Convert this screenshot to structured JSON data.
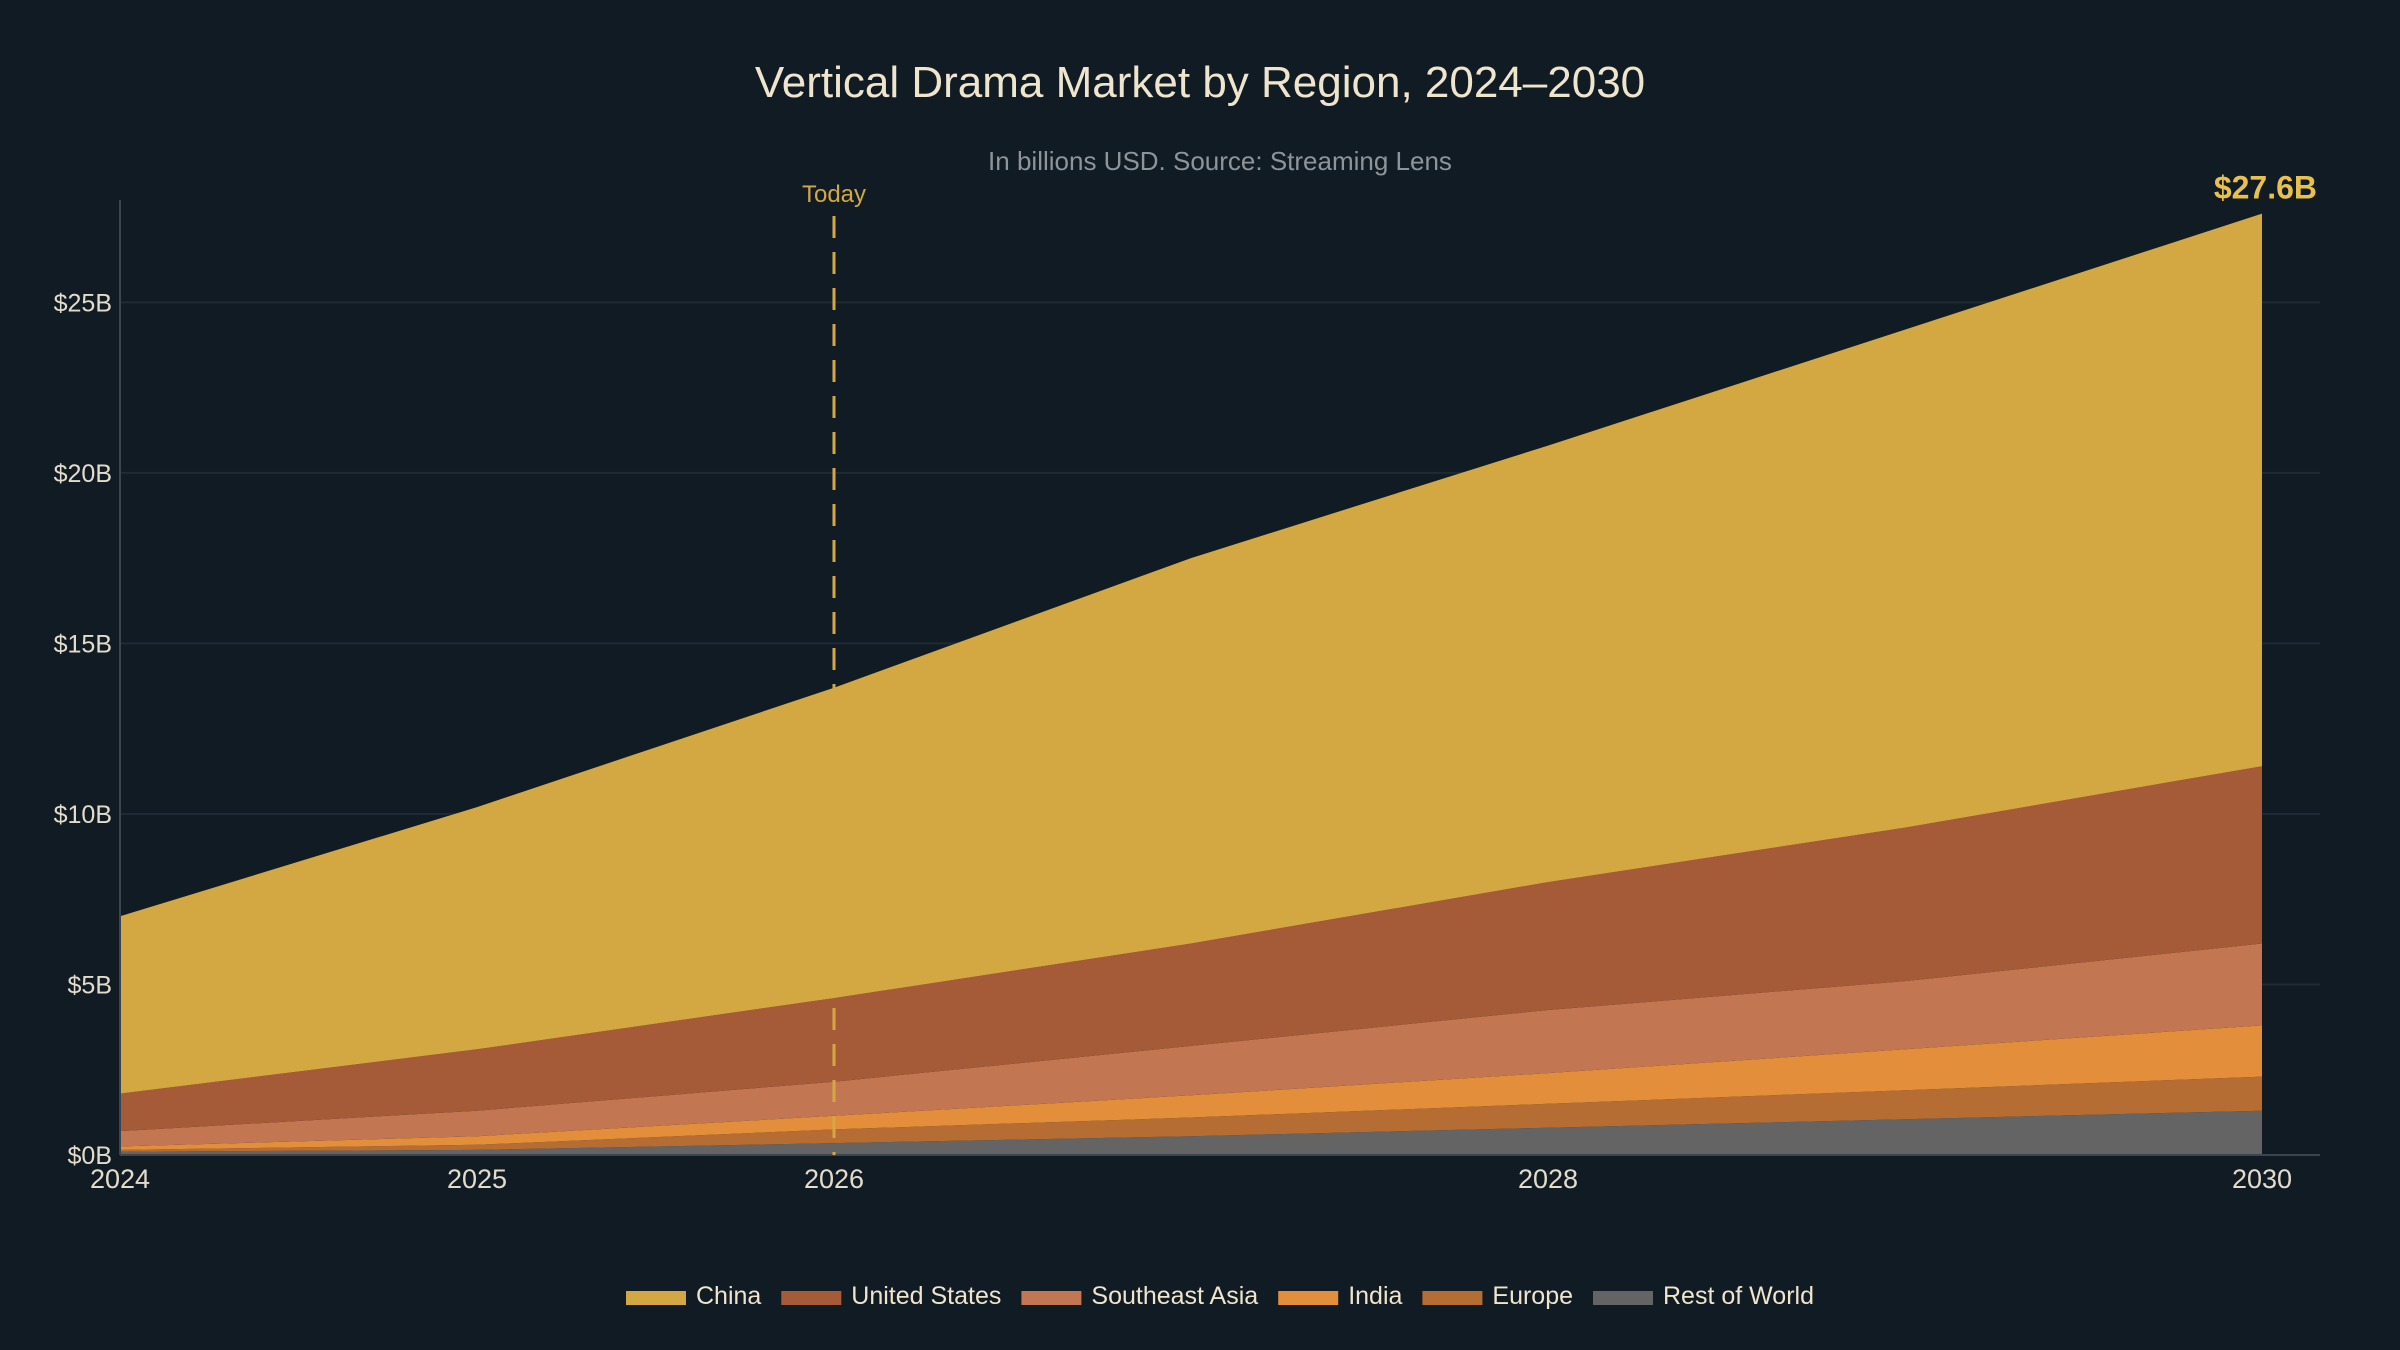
{
  "chart_data": {
    "type": "area",
    "stacked": true,
    "title": "Vertical Drama Market by Region, 2024–2030",
    "subtitle": "In billions USD. Source: Streaming Lens",
    "x": [
      2024,
      2025,
      2026,
      2027,
      2028,
      2029,
      2030
    ],
    "x_tick_labels": [
      "2024",
      "2025",
      "2026",
      "2028",
      "2030"
    ],
    "x_ticks": [
      2024,
      2025,
      2026,
      2028,
      2030
    ],
    "xlim": [
      2024,
      2030
    ],
    "ylim": [
      0,
      28
    ],
    "y_ticks": [
      0,
      5,
      10,
      15,
      20,
      25
    ],
    "y_tick_labels": [
      "$0B",
      "$5B",
      "$10B",
      "$15B",
      "$20B",
      "$25B"
    ],
    "grid": true,
    "legend_position": "bottom-center",
    "series": [
      {
        "name": "Rest of World",
        "color": "#646464",
        "values": [
          0.1,
          0.15,
          0.35,
          0.55,
          0.8,
          1.05,
          1.3
        ]
      },
      {
        "name": "Europe",
        "color": "#b56d34",
        "values": [
          0.05,
          0.15,
          0.4,
          0.55,
          0.7,
          0.85,
          1.0
        ]
      },
      {
        "name": "India",
        "color": "#e28e3a",
        "values": [
          0.1,
          0.25,
          0.4,
          0.65,
          0.9,
          1.2,
          1.5
        ]
      },
      {
        "name": "Southeast Asia",
        "color": "#c27651",
        "values": [
          0.45,
          0.75,
          1.0,
          1.45,
          1.85,
          2.0,
          2.4
        ]
      },
      {
        "name": "United States",
        "color": "#a65b38",
        "values": [
          1.1,
          1.8,
          2.45,
          3.0,
          3.75,
          4.5,
          5.2
        ]
      },
      {
        "name": "China",
        "color": "#d3a843",
        "values": [
          5.2,
          7.1,
          9.1,
          11.3,
          12.8,
          14.6,
          16.2
        ]
      }
    ],
    "legend_order": [
      "China",
      "United States",
      "Southeast Asia",
      "India",
      "Europe",
      "Rest of World"
    ],
    "annotations": {
      "today": {
        "label": "Today",
        "x": 2026,
        "color": "#d3a843"
      },
      "final_total": {
        "label": "$27.6B",
        "x": 2030,
        "value": 27.6,
        "color": "#e8c04e"
      }
    }
  }
}
